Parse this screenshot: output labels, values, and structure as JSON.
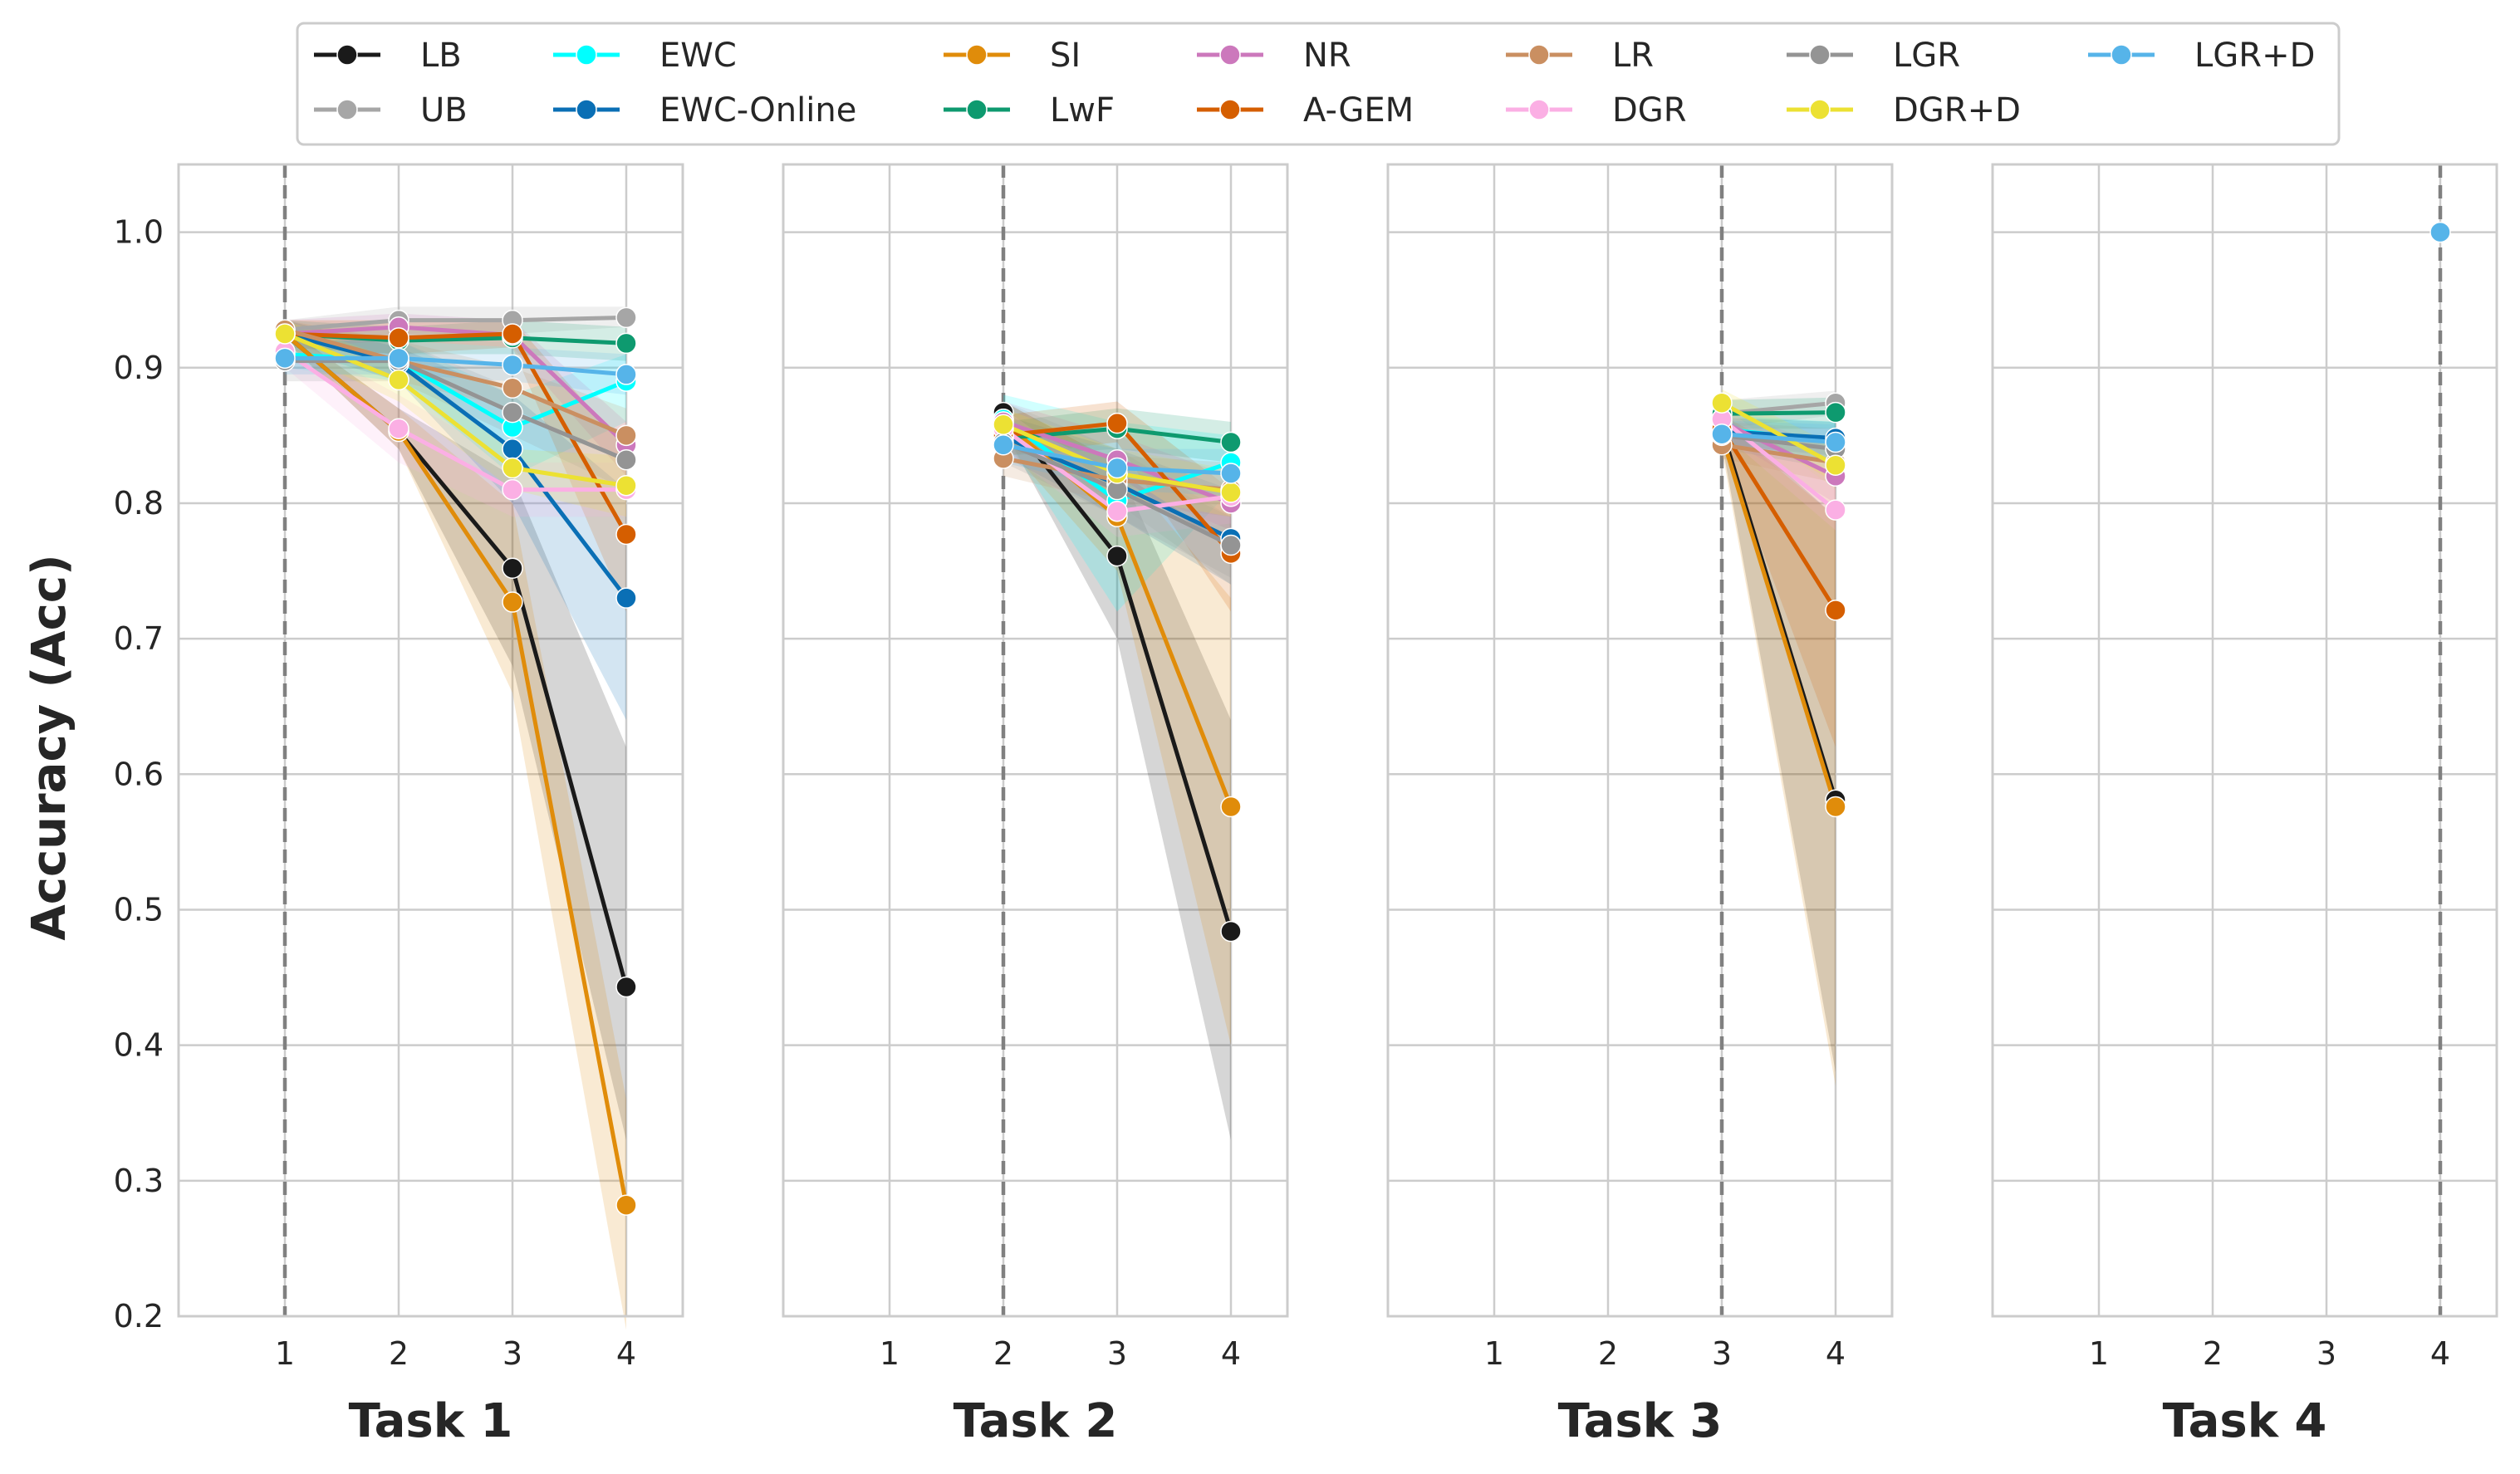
{
  "chart_data": {
    "type": "line",
    "ylabel": "Accuracy (Acc)",
    "ylim": [
      0.2,
      1.05
    ],
    "yticks": [
      "0.2",
      "0.3",
      "0.4",
      "0.5",
      "0.6",
      "0.7",
      "0.8",
      "0.9",
      "1.0"
    ],
    "xticks": [
      "1",
      "2",
      "3",
      "4"
    ],
    "grid": true,
    "legend_placement": "top-center",
    "panels": [
      {
        "xlabel": "Task 1",
        "task": 1,
        "series": [
          {
            "name": "LB",
            "color": "#1a1a1a",
            "x": [
              1,
              2,
              3,
              4
            ],
            "y": [
              0.925,
              0.853,
              0.752,
              0.443
            ],
            "lo": [
              0.92,
              0.84,
              0.68,
              0.33
            ],
            "hi": [
              0.93,
              0.87,
              0.82,
              0.62
            ]
          },
          {
            "name": "UB",
            "color": "#a6a6a6",
            "x": [
              1,
              2,
              3,
              4
            ],
            "y": [
              0.928,
              0.935,
              0.935,
              0.937
            ],
            "lo": [
              0.92,
              0.925,
              0.925,
              0.93
            ],
            "hi": [
              0.935,
              0.945,
              0.945,
              0.945
            ]
          },
          {
            "name": "EWC",
            "color": "#00ffff",
            "x": [
              1,
              2,
              3,
              4
            ],
            "y": [
              0.91,
              0.905,
              0.856,
              0.89
            ],
            "lo": [
              0.9,
              0.89,
              0.82,
              0.86
            ],
            "hi": [
              0.92,
              0.92,
              0.88,
              0.91
            ]
          },
          {
            "name": "EWC-Online",
            "color": "#0a6fb5",
            "x": [
              1,
              2,
              3,
              4
            ],
            "y": [
              0.925,
              0.903,
              0.84,
              0.73
            ],
            "lo": [
              0.915,
              0.89,
              0.8,
              0.64
            ],
            "hi": [
              0.935,
              0.915,
              0.88,
              0.81
            ]
          },
          {
            "name": "SI",
            "color": "#e08c0a",
            "x": [
              1,
              2,
              3,
              4
            ],
            "y": [
              0.925,
              0.853,
              0.727,
              0.282
            ],
            "lo": [
              0.92,
              0.84,
              0.66,
              0.19
            ],
            "hi": [
              0.93,
              0.87,
              0.8,
              0.36
            ]
          },
          {
            "name": "LwF",
            "color": "#0e9a6f",
            "x": [
              1,
              2,
              3,
              4
            ],
            "y": [
              0.925,
              0.92,
              0.922,
              0.918
            ],
            "lo": [
              0.915,
              0.91,
              0.91,
              0.905
            ],
            "hi": [
              0.935,
              0.93,
              0.935,
              0.93
            ]
          },
          {
            "name": "NR",
            "color": "#cc78bc",
            "x": [
              1,
              2,
              3,
              4
            ],
            "y": [
              0.925,
              0.93,
              0.924,
              0.843
            ],
            "lo": [
              0.915,
              0.92,
              0.915,
              0.82
            ],
            "hi": [
              0.935,
              0.94,
              0.935,
              0.86
            ]
          },
          {
            "name": "A-GEM",
            "color": "#d55e00",
            "x": [
              1,
              2,
              3,
              4
            ],
            "y": [
              0.925,
              0.922,
              0.925,
              0.777
            ],
            "lo": [
              0.915,
              0.91,
              0.915,
              0.72
            ],
            "hi": [
              0.935,
              0.935,
              0.935,
              0.84
            ]
          },
          {
            "name": "LR",
            "color": "#ca8f61",
            "x": [
              1,
              2,
              3,
              4
            ],
            "y": [
              0.928,
              0.905,
              0.885,
              0.85
            ],
            "lo": [
              0.92,
              0.89,
              0.87,
              0.83
            ],
            "hi": [
              0.935,
              0.92,
              0.9,
              0.87
            ]
          },
          {
            "name": "DGR",
            "color": "#fbafe4",
            "x": [
              1,
              2,
              3,
              4
            ],
            "y": [
              0.912,
              0.855,
              0.81,
              0.81
            ],
            "lo": [
              0.9,
              0.83,
              0.79,
              0.79
            ],
            "hi": [
              0.925,
              0.88,
              0.83,
              0.83
            ]
          },
          {
            "name": "LGR",
            "color": "#949494",
            "x": [
              1,
              2,
              3,
              4
            ],
            "y": [
              0.905,
              0.905,
              0.867,
              0.832
            ],
            "lo": [
              0.89,
              0.89,
              0.85,
              0.81
            ],
            "hi": [
              0.92,
              0.92,
              0.885,
              0.85
            ]
          },
          {
            "name": "DGR+D",
            "color": "#ece133",
            "x": [
              1,
              2,
              3,
              4
            ],
            "y": [
              0.925,
              0.891,
              0.826,
              0.813
            ],
            "lo": [
              0.915,
              0.875,
              0.81,
              0.79
            ],
            "hi": [
              0.935,
              0.905,
              0.84,
              0.835
            ]
          },
          {
            "name": "LGR+D",
            "color": "#56b4e9",
            "x": [
              1,
              2,
              3,
              4
            ],
            "y": [
              0.907,
              0.907,
              0.902,
              0.895
            ],
            "lo": [
              0.895,
              0.895,
              0.89,
              0.88
            ],
            "hi": [
              0.92,
              0.92,
              0.915,
              0.91
            ]
          }
        ]
      },
      {
        "xlabel": "Task 2",
        "task": 2,
        "series": [
          {
            "name": "LB",
            "color": "#1a1a1a",
            "x": [
              2,
              3,
              4
            ],
            "y": [
              0.867,
              0.761,
              0.484
            ],
            "lo": [
              0.855,
              0.7,
              0.33
            ],
            "hi": [
              0.875,
              0.83,
              0.64
            ]
          },
          {
            "name": "UB",
            "color": "#a6a6a6",
            "x": [
              2,
              3,
              4
            ],
            "y": [
              0.862,
              0.822,
              0.768
            ],
            "lo": [
              0.85,
              0.8,
              0.74
            ],
            "hi": [
              0.875,
              0.84,
              0.79
            ]
          },
          {
            "name": "EWC",
            "color": "#00ffff",
            "x": [
              2,
              3,
              4
            ],
            "y": [
              0.862,
              0.802,
              0.83
            ],
            "lo": [
              0.85,
              0.72,
              0.81
            ],
            "hi": [
              0.88,
              0.86,
              0.85
            ]
          },
          {
            "name": "EWC-Online",
            "color": "#0a6fb5",
            "x": [
              2,
              3,
              4
            ],
            "y": [
              0.849,
              0.814,
              0.774
            ],
            "lo": [
              0.835,
              0.79,
              0.74
            ],
            "hi": [
              0.865,
              0.84,
              0.81
            ]
          },
          {
            "name": "SI",
            "color": "#e08c0a",
            "x": [
              2,
              3,
              4
            ],
            "y": [
              0.86,
              0.79,
              0.576
            ],
            "lo": [
              0.845,
              0.75,
              0.4
            ],
            "hi": [
              0.875,
              0.83,
              0.73
            ]
          },
          {
            "name": "LwF",
            "color": "#0e9a6f",
            "x": [
              2,
              3,
              4
            ],
            "y": [
              0.848,
              0.855,
              0.845
            ],
            "lo": [
              0.835,
              0.84,
              0.83
            ],
            "hi": [
              0.86,
              0.87,
              0.86
            ]
          },
          {
            "name": "NR",
            "color": "#cc78bc",
            "x": [
              2,
              3,
              4
            ],
            "y": [
              0.86,
              0.832,
              0.8
            ],
            "lo": [
              0.845,
              0.815,
              0.78
            ],
            "hi": [
              0.875,
              0.85,
              0.82
            ]
          },
          {
            "name": "A-GEM",
            "color": "#d55e00",
            "x": [
              2,
              3,
              4
            ],
            "y": [
              0.85,
              0.859,
              0.763
            ],
            "lo": [
              0.835,
              0.845,
              0.72
            ],
            "hi": [
              0.865,
              0.875,
              0.81
            ]
          },
          {
            "name": "LR",
            "color": "#ca8f61",
            "x": [
              2,
              3,
              4
            ],
            "y": [
              0.833,
              0.817,
              0.81
            ],
            "lo": [
              0.82,
              0.8,
              0.79
            ],
            "hi": [
              0.845,
              0.835,
              0.83
            ]
          },
          {
            "name": "DGR",
            "color": "#fbafe4",
            "x": [
              2,
              3,
              4
            ],
            "y": [
              0.855,
              0.794,
              0.805
            ],
            "lo": [
              0.84,
              0.775,
              0.785
            ],
            "hi": [
              0.87,
              0.81,
              0.825
            ]
          },
          {
            "name": "LGR",
            "color": "#949494",
            "x": [
              2,
              3,
              4
            ],
            "y": [
              0.845,
              0.81,
              0.769
            ],
            "lo": [
              0.83,
              0.79,
              0.745
            ],
            "hi": [
              0.86,
              0.83,
              0.79
            ]
          },
          {
            "name": "DGR+D",
            "color": "#ece133",
            "x": [
              2,
              3,
              4
            ],
            "y": [
              0.858,
              0.822,
              0.808
            ],
            "lo": [
              0.845,
              0.805,
              0.79
            ],
            "hi": [
              0.87,
              0.84,
              0.825
            ]
          },
          {
            "name": "LGR+D",
            "color": "#56b4e9",
            "x": [
              2,
              3,
              4
            ],
            "y": [
              0.843,
              0.826,
              0.822
            ],
            "lo": [
              0.83,
              0.81,
              0.805
            ],
            "hi": [
              0.855,
              0.84,
              0.84
            ]
          }
        ]
      },
      {
        "xlabel": "Task 3",
        "task": 3,
        "series": [
          {
            "name": "LB",
            "color": "#1a1a1a",
            "x": [
              3,
              4
            ],
            "y": [
              0.855,
              0.581
            ],
            "lo": [
              0.845,
              0.38
            ],
            "hi": [
              0.865,
              0.79
            ]
          },
          {
            "name": "UB",
            "color": "#a6a6a6",
            "x": [
              3,
              4
            ],
            "y": [
              0.866,
              0.874
            ],
            "lo": [
              0.855,
              0.865
            ],
            "hi": [
              0.876,
              0.883
            ]
          },
          {
            "name": "EWC",
            "color": "#00ffff",
            "x": [
              3,
              4
            ],
            "y": [
              0.855,
              0.845
            ],
            "lo": [
              0.845,
              0.83
            ],
            "hi": [
              0.865,
              0.86
            ]
          },
          {
            "name": "EWC-Online",
            "color": "#0a6fb5",
            "x": [
              3,
              4
            ],
            "y": [
              0.853,
              0.848
            ],
            "lo": [
              0.843,
              0.835
            ],
            "hi": [
              0.863,
              0.86
            ]
          },
          {
            "name": "SI",
            "color": "#e08c0a",
            "x": [
              3,
              4
            ],
            "y": [
              0.85,
              0.576
            ],
            "lo": [
              0.84,
              0.37
            ],
            "hi": [
              0.86,
              0.79
            ]
          },
          {
            "name": "LwF",
            "color": "#0e9a6f",
            "x": [
              3,
              4
            ],
            "y": [
              0.866,
              0.867
            ],
            "lo": [
              0.855,
              0.855
            ],
            "hi": [
              0.876,
              0.878
            ]
          },
          {
            "name": "NR",
            "color": "#cc78bc",
            "x": [
              3,
              4
            ],
            "y": [
              0.86,
              0.82
            ],
            "lo": [
              0.85,
              0.8
            ],
            "hi": [
              0.87,
              0.84
            ]
          },
          {
            "name": "A-GEM",
            "color": "#d55e00",
            "x": [
              3,
              4
            ],
            "y": [
              0.855,
              0.721
            ],
            "lo": [
              0.845,
              0.62
            ],
            "hi": [
              0.865,
              0.82
            ]
          },
          {
            "name": "LR",
            "color": "#ca8f61",
            "x": [
              3,
              4
            ],
            "y": [
              0.843,
              0.83
            ],
            "lo": [
              0.833,
              0.815
            ],
            "hi": [
              0.853,
              0.845
            ]
          },
          {
            "name": "DGR",
            "color": "#fbafe4",
            "x": [
              3,
              4
            ],
            "y": [
              0.862,
              0.795
            ],
            "lo": [
              0.852,
              0.78
            ],
            "hi": [
              0.872,
              0.81
            ]
          },
          {
            "name": "LGR",
            "color": "#949494",
            "x": [
              3,
              4
            ],
            "y": [
              0.85,
              0.84
            ],
            "lo": [
              0.84,
              0.825
            ],
            "hi": [
              0.86,
              0.855
            ]
          },
          {
            "name": "DGR+D",
            "color": "#ece133",
            "x": [
              3,
              4
            ],
            "y": [
              0.874,
              0.828
            ],
            "lo": [
              0.864,
              0.815
            ],
            "hi": [
              0.884,
              0.842
            ]
          },
          {
            "name": "LGR+D",
            "color": "#56b4e9",
            "x": [
              3,
              4
            ],
            "y": [
              0.851,
              0.845
            ],
            "lo": [
              0.841,
              0.832
            ],
            "hi": [
              0.861,
              0.858
            ]
          }
        ]
      },
      {
        "xlabel": "Task 4",
        "task": 4,
        "series": [
          {
            "name": "LGR+D",
            "color": "#56b4e9",
            "x": [
              4
            ],
            "y": [
              1.0
            ],
            "lo": [
              1.0
            ],
            "hi": [
              1.0
            ]
          }
        ]
      }
    ],
    "legend": [
      {
        "name": "LB",
        "color": "#1a1a1a"
      },
      {
        "name": "UB",
        "color": "#a6a6a6"
      },
      {
        "name": "EWC",
        "color": "#00ffff"
      },
      {
        "name": "EWC-Online",
        "color": "#0a6fb5"
      },
      {
        "name": "SI",
        "color": "#e08c0a"
      },
      {
        "name": "LwF",
        "color": "#0e9a6f"
      },
      {
        "name": "NR",
        "color": "#cc78bc"
      },
      {
        "name": "A-GEM",
        "color": "#d55e00"
      },
      {
        "name": "LR",
        "color": "#ca8f61"
      },
      {
        "name": "DGR",
        "color": "#fbafe4"
      },
      {
        "name": "LGR",
        "color": "#949494"
      },
      {
        "name": "DGR+D",
        "color": "#ece133"
      },
      {
        "name": "LGR+D",
        "color": "#56b4e9"
      }
    ]
  }
}
